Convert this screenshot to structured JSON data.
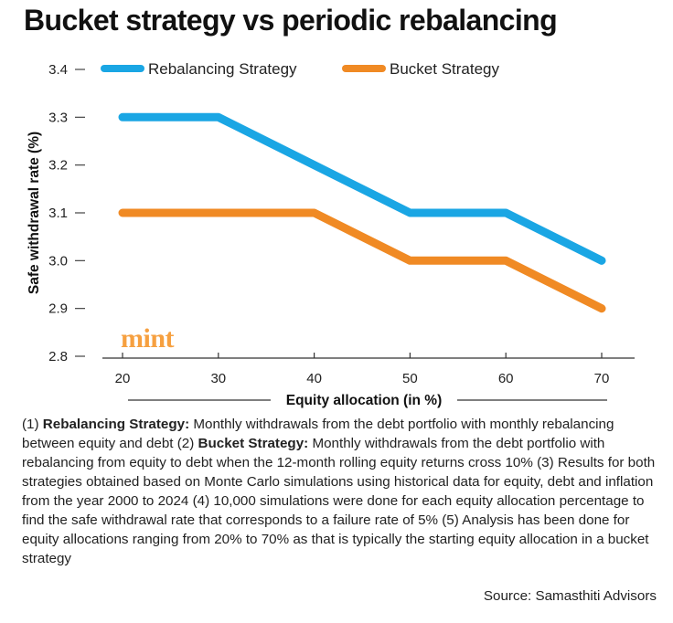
{
  "title": "Bucket strategy vs periodic rebalancing",
  "brand": "mint",
  "chart_data": {
    "type": "line",
    "ylabel": "Safe withdrawal rate (%)",
    "xlabel": "Equity allocation (in %)",
    "x": [
      20,
      30,
      40,
      50,
      60,
      70
    ],
    "xlim": [
      20,
      70
    ],
    "ylim": [
      2.8,
      3.4
    ],
    "yticks": [
      "2.8",
      "2.9",
      "3.0",
      "3.1",
      "3.2",
      "3.3",
      "3.4"
    ],
    "legend_position": "top",
    "grid": false,
    "series": [
      {
        "name": "Rebalancing Strategy",
        "color": "#1aa6e4",
        "values": [
          3.3,
          3.3,
          3.2,
          3.1,
          3.1,
          3.0
        ]
      },
      {
        "name": "Bucket Strategy",
        "color": "#f08a24",
        "values": [
          3.1,
          3.1,
          3.1,
          3.0,
          3.0,
          2.9
        ]
      }
    ]
  },
  "notes": [
    {
      "text": "(1) ",
      "bold": false
    },
    {
      "text": "Rebalancing Strategy:",
      "bold": true
    },
    {
      "text": " Monthly withdrawals from the debt portfolio with monthly rebalancing between equity and debt (2) ",
      "bold": false
    },
    {
      "text": "Bucket Strategy:",
      "bold": true
    },
    {
      "text": " Monthly withdrawals from the debt portfolio with rebalancing from equity to debt when the 12-month rolling equity returns cross 10% (3) Results for both strategies obtained based on Monte Carlo simulations using historical data for equity, debt and inflation from the year 2000 to 2024 (4) 10,000 simulations were done for each equity allocation percentage to find the safe withdrawal rate that corresponds to a failure rate of 5% (5) Analysis has been done for equity allocations ranging from 20% to 70% as that is typically the starting equity allocation in a bucket strategy",
      "bold": false
    }
  ],
  "source": "Source: Samasthiti Advisors"
}
